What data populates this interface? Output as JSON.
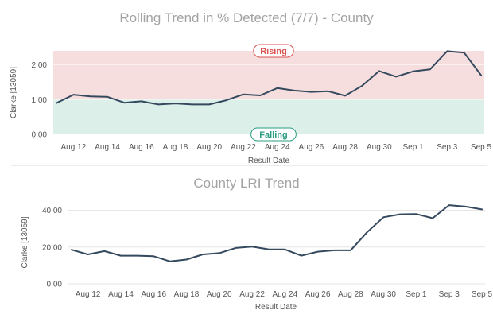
{
  "chart_data": [
    {
      "type": "line",
      "title": "Rolling Trend in % Detected (7/7) - County",
      "xlabel": "Result Date",
      "ylabel": "Clarke [13059]",
      "ylim": [
        0,
        2.4
      ],
      "yticks": [
        "0.00",
        "1.00",
        "2.00"
      ],
      "xticks": [
        "Aug 12",
        "Aug 14",
        "Aug 16",
        "Aug 18",
        "Aug 20",
        "Aug 22",
        "Aug 24",
        "Aug 26",
        "Aug 28",
        "Aug 30",
        "Sep 1",
        "Sep 3",
        "Sep 5"
      ],
      "grid": true,
      "zones": [
        {
          "label": "Rising",
          "from": 1.0,
          "to": 2.4,
          "color": "#f7dede",
          "label_color": "#d9534f"
        },
        {
          "label": "Falling",
          "from": 0.0,
          "to": 1.0,
          "color": "#dcefe9",
          "label_color": "#2a9d82"
        }
      ],
      "line_color": "#34495e",
      "x": [
        11,
        12,
        13,
        14,
        15,
        16,
        17,
        18,
        19,
        20,
        21,
        22,
        23,
        24,
        25,
        26,
        27,
        28,
        29,
        30,
        31,
        32,
        33,
        34,
        35,
        36
      ],
      "values": [
        0.9,
        1.14,
        1.09,
        1.08,
        0.91,
        0.95,
        0.86,
        0.89,
        0.86,
        0.86,
        0.98,
        1.15,
        1.12,
        1.33,
        1.26,
        1.22,
        1.24,
        1.11,
        1.4,
        1.82,
        1.66,
        1.81,
        1.87,
        2.39,
        2.35,
        1.7
      ]
    },
    {
      "type": "line",
      "title": "County LRI Trend",
      "xlabel": "Result Date",
      "ylabel": "Clarke [13059]",
      "ylim": [
        0,
        45
      ],
      "yticks": [
        "0.00",
        "20.00",
        "40.00"
      ],
      "xticks": [
        "Aug 12",
        "Aug 14",
        "Aug 16",
        "Aug 18",
        "Aug 20",
        "Aug 22",
        "Aug 24",
        "Aug 26",
        "Aug 28",
        "Aug 30",
        "Sep 1",
        "Sep 3",
        "Sep 5"
      ],
      "grid": true,
      "line_color": "#34495e",
      "x": [
        11,
        12,
        13,
        14,
        15,
        16,
        17,
        18,
        19,
        20,
        21,
        22,
        23,
        24,
        25,
        26,
        27,
        28,
        29,
        30,
        31,
        32,
        33,
        34,
        35,
        36
      ],
      "values": [
        18.5,
        16.0,
        17.8,
        15.3,
        15.3,
        15.0,
        12.2,
        13.2,
        16.0,
        16.7,
        19.5,
        20.2,
        18.8,
        18.7,
        15.3,
        17.5,
        18.2,
        18.2,
        28.0,
        36.2,
        37.8,
        38.0,
        35.7,
        42.8,
        42.0,
        40.5
      ]
    }
  ]
}
